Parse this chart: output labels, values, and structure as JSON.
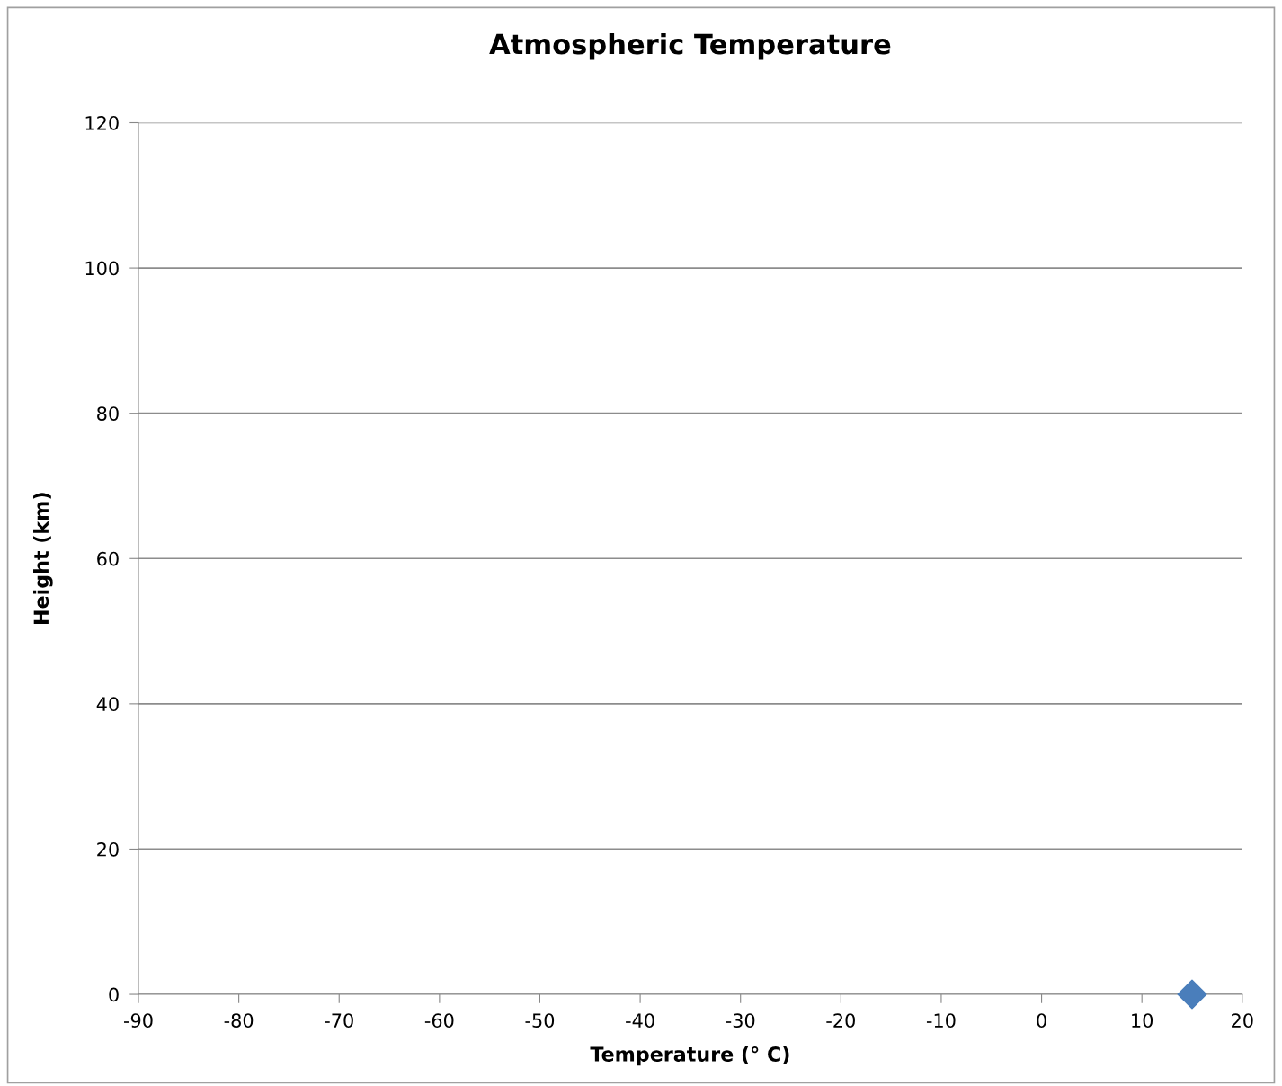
{
  "chart_data": {
    "type": "scatter",
    "title": "Atmospheric Temperature",
    "xlabel": "Temperature (° C)",
    "ylabel": "Height (km)",
    "x": [
      15
    ],
    "series": [
      {
        "color": "#4a7ebb",
        "values": [
          0
        ]
      }
    ],
    "marker": "diamond",
    "xlim": [
      -90,
      20
    ],
    "xticks": [
      -90,
      -80,
      -70,
      -60,
      -50,
      -40,
      -30,
      -20,
      -10,
      0,
      10,
      20
    ],
    "ylim": [
      0,
      120
    ],
    "yticks": [
      0,
      20,
      40,
      60,
      80,
      100,
      120
    ],
    "grid": "y",
    "legend": false
  }
}
